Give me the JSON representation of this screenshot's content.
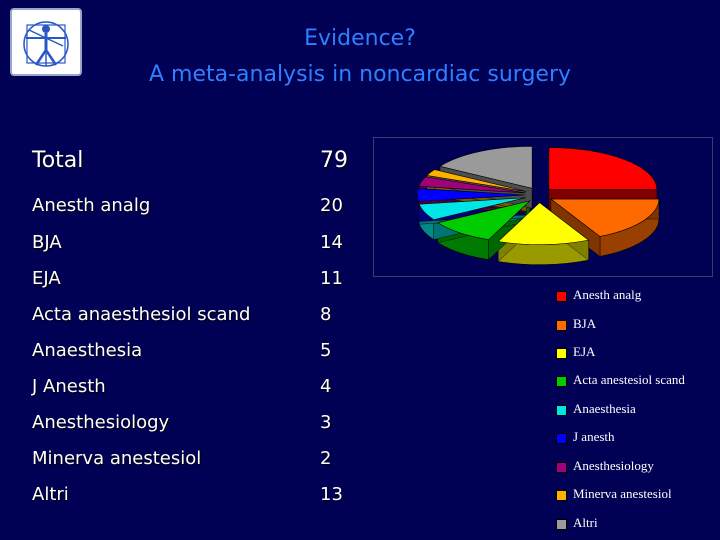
{
  "header": {
    "title": "Evidence?",
    "subtitle": "A meta-analysis in noncardiac surgery"
  },
  "table": {
    "total": {
      "label": "Total",
      "value": "79"
    },
    "rows": [
      {
        "label": "Anesth analg",
        "value": "20"
      },
      {
        "label": "BJA",
        "value": "14"
      },
      {
        "label": "EJA",
        "value": "11"
      },
      {
        "label": "Acta anaesthesiol scand",
        "value": "8"
      },
      {
        "label": "Anaesthesia",
        "value": "5"
      },
      {
        "label": "J Anesth",
        "value": "4"
      },
      {
        "label": "Anesthesiology",
        "value": "3"
      },
      {
        "label": "Minerva anestesiol",
        "value": "2"
      },
      {
        "label": "Altri",
        "value": "13"
      }
    ]
  },
  "chart_data": {
    "type": "pie",
    "title": "",
    "categories": [
      "Anesth analg",
      "BJA",
      "EJA",
      "Acta anestesiol scand",
      "Anaesthesia",
      "J anesth",
      "Anesthesiology",
      "Minerva anestesiol",
      "Altri"
    ],
    "values": [
      20,
      14,
      11,
      8,
      5,
      4,
      3,
      2,
      13
    ],
    "colors": [
      "#ff0000",
      "#ff6a00",
      "#ffff00",
      "#00cc00",
      "#00e5e5",
      "#0000ff",
      "#a0007a",
      "#ffb000",
      "#9a9a9a"
    ],
    "style": "3d-exploded",
    "legend": "bottom-right"
  },
  "colors": {
    "background": "#000055",
    "title": "#2f7fff",
    "text": "#ffffff"
  },
  "icons": {
    "logo": "vitruvian-man-logo"
  }
}
